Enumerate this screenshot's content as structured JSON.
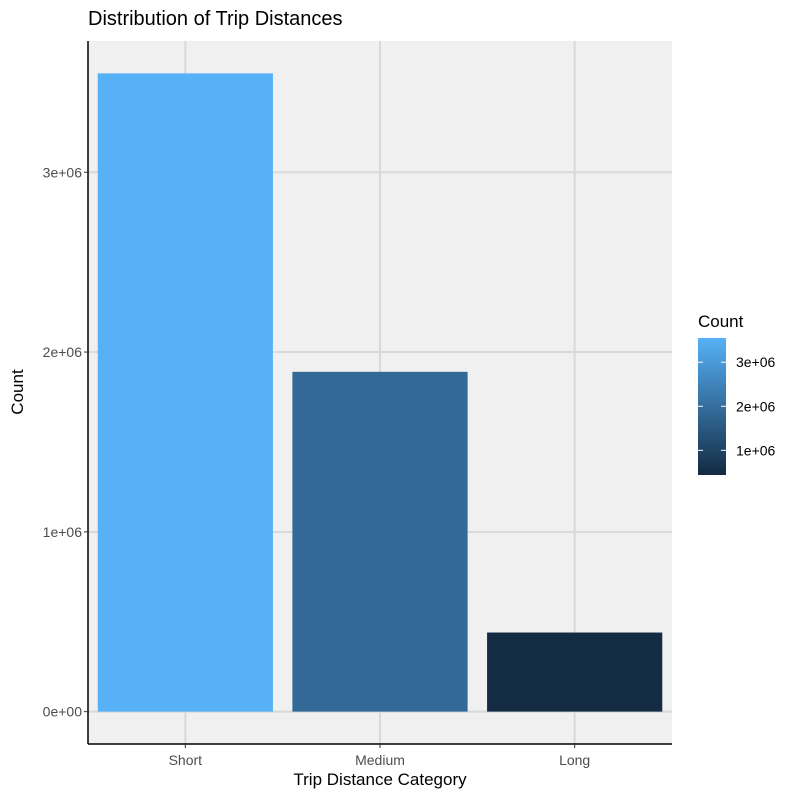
{
  "chart_data": {
    "type": "bar",
    "title": "Distribution of Trip Distances",
    "xlabel": "Trip Distance Category",
    "ylabel": "Count",
    "categories": [
      "Short",
      "Medium",
      "Long"
    ],
    "values": [
      3550000,
      1890000,
      440000
    ],
    "ylim": [
      -180000,
      3730000
    ],
    "yticks": [
      {
        "value": 0,
        "label": "0e+00"
      },
      {
        "value": 1000000,
        "label": "1e+06"
      },
      {
        "value": 2000000,
        "label": "2e+06"
      },
      {
        "value": 3000000,
        "label": "3e+06"
      }
    ],
    "grid": true,
    "legend": {
      "title": "Count",
      "placement": "right",
      "type": "colorbar",
      "range": [
        440000,
        3550000
      ],
      "ticks": [
        {
          "value": 1000000,
          "label": "1e+06"
        },
        {
          "value": 2000000,
          "label": "2e+06"
        },
        {
          "value": 3000000,
          "label": "3e+06"
        }
      ]
    },
    "colors": {
      "low": "#132b43",
      "high": "#56b1f7",
      "panel_background": "#f0f0f0",
      "grid": "#d9d9d9"
    }
  }
}
